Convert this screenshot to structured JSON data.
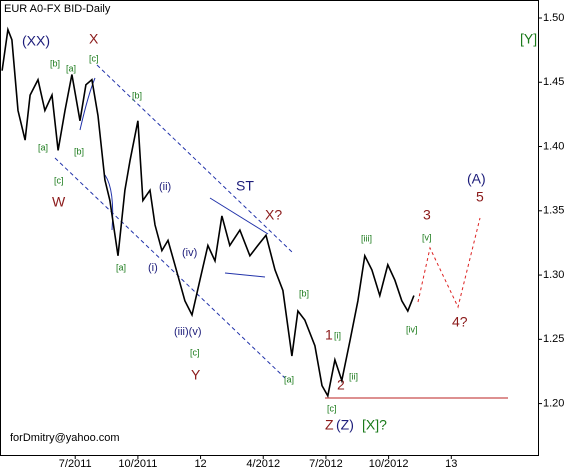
{
  "chart_data": {
    "type": "line",
    "title": "EUR A0-FX BID-Daily",
    "footer": "forDmitry@yahoo.com",
    "color": "#000000",
    "x": [
      2.5,
      2.78,
      2.97,
      3.26,
      3.6,
      3.84,
      4.22,
      4.55,
      4.89,
      5.18,
      5.51,
      5.84,
      6.23,
      6.51,
      6.8,
      7.09,
      7.42,
      7.66,
      8.05,
      8.38,
      8.62,
      9.0,
      9.24,
      9.58,
      9.82,
      10.15,
      10.44,
      10.77,
      11.25,
      11.59,
      11.97,
      12.35,
      12.69,
      13.02,
      13.4,
      13.88,
      14.36,
      14.74,
      15.13,
      15.56,
      15.94,
      16.37,
      16.66,
      16.99,
      17.47,
      17.81,
      18.09,
      18.43,
      18.76,
      19.15,
      19.53,
      19.86,
      20.2,
      20.58,
      20.96,
      21.3,
      21.63,
      21.92,
      22.21
    ],
    "values": [
      1.459,
      1.491,
      1.483,
      1.428,
      1.405,
      1.44,
      1.452,
      1.428,
      1.44,
      1.397,
      1.428,
      1.456,
      1.42,
      1.448,
      1.452,
      1.424,
      1.374,
      1.358,
      1.315,
      1.366,
      1.389,
      1.42,
      1.358,
      1.366,
      1.339,
      1.319,
      1.327,
      1.308,
      1.28,
      1.269,
      1.296,
      1.323,
      1.311,
      1.346,
      1.323,
      1.335,
      1.315,
      1.323,
      1.331,
      1.304,
      1.288,
      1.237,
      1.272,
      1.265,
      1.245,
      1.214,
      1.206,
      1.234,
      1.218,
      1.249,
      1.28,
      1.315,
      1.304,
      1.284,
      1.308,
      1.296,
      1.28,
      1.272,
      1.284
    ],
    "xlim": [
      2.4,
      28.15
    ],
    "xticks": [
      {
        "value": 6,
        "label": "7/2011"
      },
      {
        "value": 9,
        "label": "10/2011"
      },
      12,
      {
        "value": 15,
        "label": "4/2012"
      },
      {
        "value": 18,
        "label": "7/2012"
      },
      {
        "value": 21,
        "label": "10/2012"
      },
      {
        "value": 24,
        "label": "13"
      }
    ],
    "ylim": [
      1.16,
      1.514
    ],
    "yticks": [
      {
        "value": 1.2,
        "label": "1.20"
      },
      {
        "value": 1.25,
        "label": "1.25"
      },
      {
        "value": 1.3,
        "label": "1.30"
      },
      {
        "value": 1.35,
        "label": "1.35"
      },
      {
        "value": 1.4,
        "label": "1.40"
      },
      {
        "value": 1.45,
        "label": "1.45"
      },
      {
        "value": 1.5,
        "label": "1.50"
      }
    ],
    "annotations": [
      "(XX)",
      "X",
      "[b]",
      "[a]",
      "[c]",
      "[b]",
      "[a]",
      "[b]",
      "[c]",
      "W",
      "(ii)",
      "ST",
      "X?",
      "(iv)",
      "(i)",
      "[a]",
      "(iii)(v)",
      "[c]",
      "Y",
      "[iii]",
      "[v]",
      "3",
      "(A)",
      "5",
      "[b]",
      "1",
      "[i]",
      "[ii]",
      "2",
      "[a]",
      "[c]",
      "Z",
      "(Z)",
      "[X]?",
      "[iv]",
      "4?",
      "[Y]"
    ]
  }
}
